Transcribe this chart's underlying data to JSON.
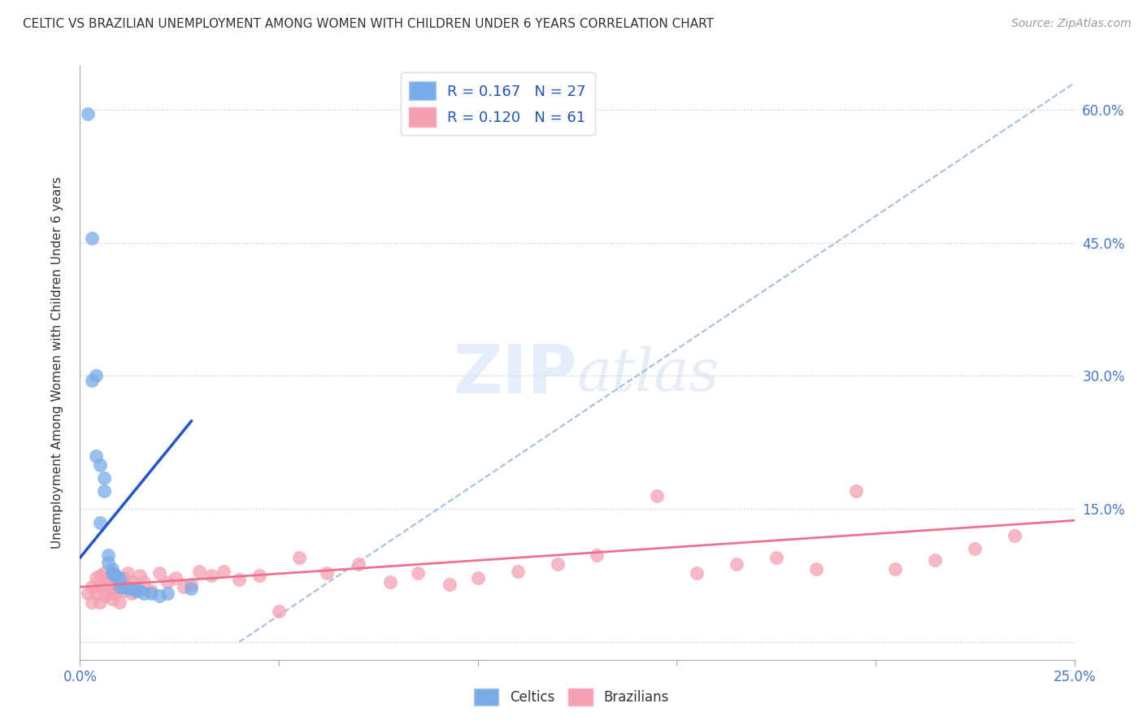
{
  "title": "CELTIC VS BRAZILIAN UNEMPLOYMENT AMONG WOMEN WITH CHILDREN UNDER 6 YEARS CORRELATION CHART",
  "source": "Source: ZipAtlas.com",
  "ylabel": "Unemployment Among Women with Children Under 6 years",
  "xlim": [
    0.0,
    0.25
  ],
  "ylim": [
    -0.02,
    0.65
  ],
  "color_celtics": "#7AABE8",
  "color_brazilians": "#F4A0B0",
  "color_celtics_line": "#2255CC",
  "color_brazilians_line": "#EE7090",
  "color_diag_line": "#8AAEDD",
  "watermark_zip": "ZIP",
  "watermark_atlas": "atlas",
  "legend_R_celtics": "R = 0.167",
  "legend_N_celtics": "N = 27",
  "legend_R_brazilians": "R = 0.120",
  "legend_N_brazilians": "N = 61",
  "celtics_x": [
    0.002,
    0.003,
    0.003,
    0.004,
    0.004,
    0.005,
    0.005,
    0.006,
    0.006,
    0.007,
    0.007,
    0.008,
    0.008,
    0.009,
    0.009,
    0.01,
    0.01,
    0.011,
    0.012,
    0.013,
    0.014,
    0.015,
    0.016,
    0.018,
    0.02,
    0.022,
    0.028
  ],
  "celtics_y": [
    0.595,
    0.455,
    0.295,
    0.3,
    0.21,
    0.2,
    0.135,
    0.185,
    0.17,
    0.098,
    0.09,
    0.082,
    0.078,
    0.075,
    0.075,
    0.072,
    0.062,
    0.062,
    0.06,
    0.06,
    0.058,
    0.058,
    0.055,
    0.055,
    0.052,
    0.055,
    0.06
  ],
  "brazilians_x": [
    0.002,
    0.003,
    0.003,
    0.004,
    0.004,
    0.005,
    0.005,
    0.005,
    0.006,
    0.006,
    0.006,
    0.007,
    0.007,
    0.008,
    0.008,
    0.008,
    0.009,
    0.009,
    0.01,
    0.01,
    0.011,
    0.011,
    0.012,
    0.012,
    0.013,
    0.013,
    0.014,
    0.015,
    0.016,
    0.018,
    0.02,
    0.022,
    0.024,
    0.026,
    0.028,
    0.03,
    0.033,
    0.036,
    0.04,
    0.045,
    0.05,
    0.055,
    0.062,
    0.07,
    0.078,
    0.085,
    0.093,
    0.1,
    0.11,
    0.12,
    0.13,
    0.145,
    0.155,
    0.165,
    0.175,
    0.185,
    0.195,
    0.205,
    0.215,
    0.225,
    0.235
  ],
  "brazilians_y": [
    0.055,
    0.045,
    0.062,
    0.055,
    0.072,
    0.045,
    0.062,
    0.075,
    0.052,
    0.062,
    0.078,
    0.055,
    0.07,
    0.048,
    0.062,
    0.075,
    0.055,
    0.068,
    0.045,
    0.062,
    0.058,
    0.072,
    0.062,
    0.078,
    0.055,
    0.068,
    0.062,
    0.075,
    0.068,
    0.058,
    0.078,
    0.068,
    0.072,
    0.062,
    0.065,
    0.08,
    0.075,
    0.08,
    0.07,
    0.075,
    0.035,
    0.095,
    0.078,
    0.088,
    0.068,
    0.078,
    0.065,
    0.072,
    0.08,
    0.088,
    0.098,
    0.165,
    0.078,
    0.088,
    0.095,
    0.082,
    0.17,
    0.082,
    0.092,
    0.105,
    0.12
  ],
  "celtic_line_x": [
    0.0,
    0.028
  ],
  "celtic_line_y_intercept": 0.095,
  "celtic_line_slope": 5.5,
  "braz_line_x": [
    0.0,
    0.25
  ],
  "braz_line_y_intercept": 0.062,
  "braz_line_slope": 0.3
}
